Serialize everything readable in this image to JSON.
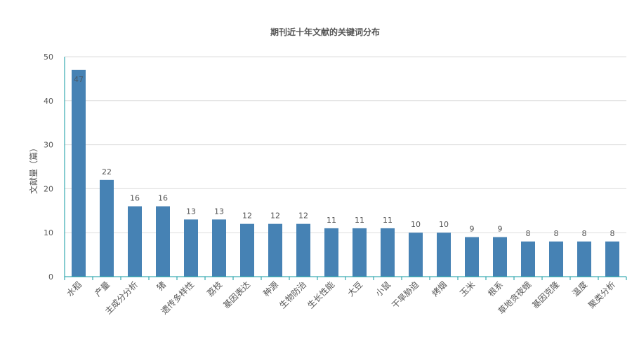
{
  "chart_data": {
    "type": "bar",
    "title": "期刊近十年文献的关键词分布",
    "xlabel": "",
    "ylabel": "文献量（篇）",
    "ylim": [
      0,
      50
    ],
    "yticks": [
      "0",
      "10",
      "20",
      "30",
      "40",
      "50"
    ],
    "grid": true,
    "legend": "none",
    "categories": [
      "水稻",
      "产量",
      "主成分分析",
      "猪",
      "遗传多样性",
      "荔枝",
      "基因表达",
      "种源",
      "生物防治",
      "生长性能",
      "大豆",
      "小鼠",
      "干旱胁迫",
      "烤烟",
      "玉米",
      "根系",
      "草地贪夜蛾",
      "基因克隆",
      "温度",
      "聚类分析"
    ],
    "values": [
      47,
      22,
      16,
      16,
      13,
      13,
      12,
      12,
      12,
      11,
      11,
      11,
      10,
      10,
      9,
      9,
      8,
      8,
      8,
      8
    ],
    "colors": {
      "bar": "#4682B4",
      "axis": "#0E9AA0",
      "grid": "#DDDDDD",
      "text": "#555555"
    }
  }
}
